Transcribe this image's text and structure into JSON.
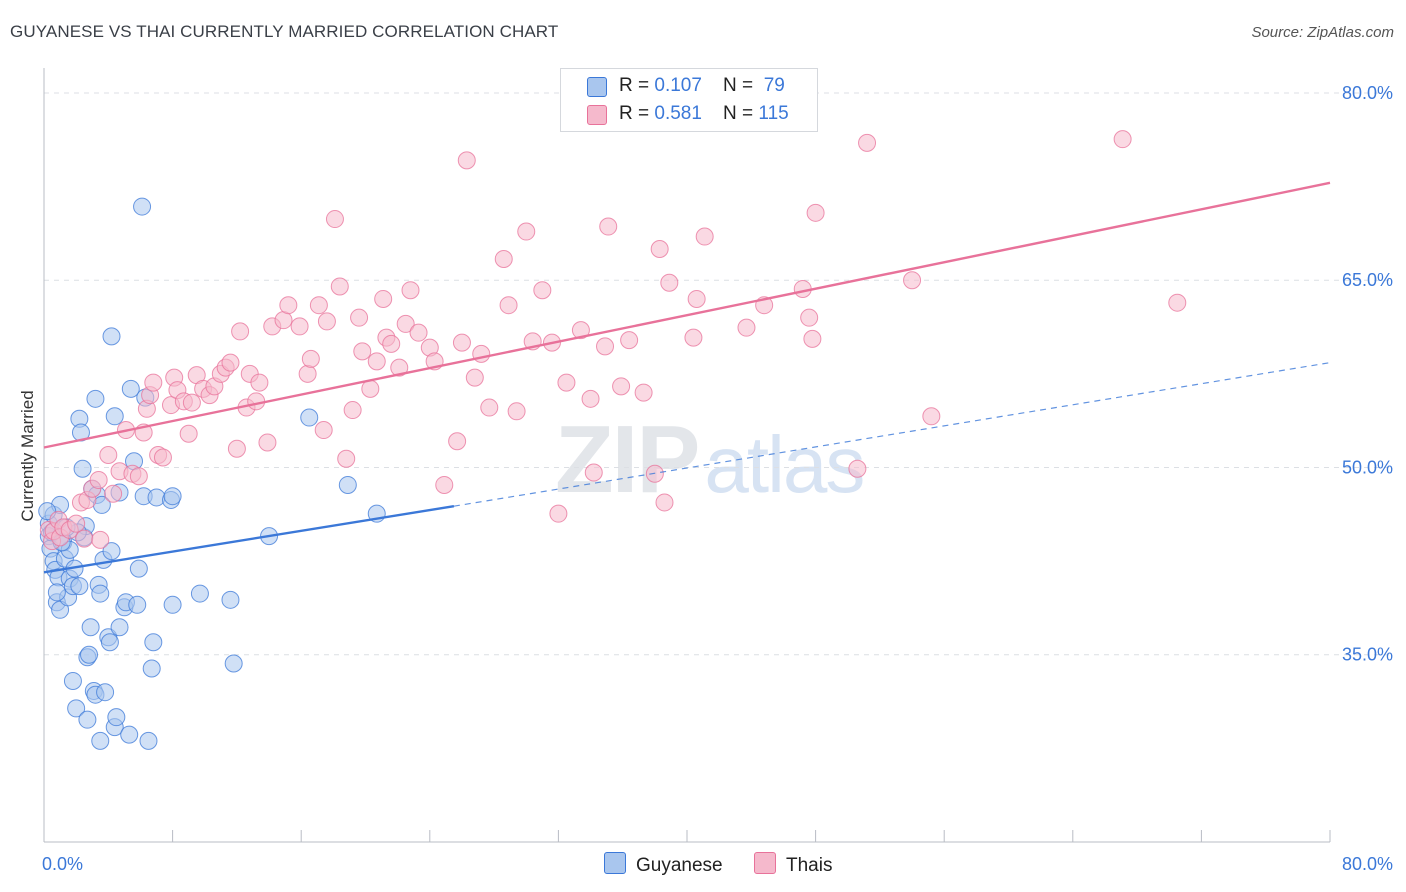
{
  "title": "GUYANESE VS THAI CURRENTLY MARRIED CORRELATION CHART",
  "source": "Source: ZipAtlas.com",
  "watermark": {
    "zip": "ZIP",
    "atlas": "atlas"
  },
  "colors": {
    "blue": "#3b78d8",
    "blue_fill": "#a9c6ee",
    "pink": "#e8729a",
    "pink_fill": "#f5b9cc",
    "grid": "#dcdfe4",
    "axis_text": "#3b78d8"
  },
  "legend": [
    {
      "r_label": "R = ",
      "r_value": "0.107",
      "n_label": "N = ",
      "n_value": "79"
    },
    {
      "r_label": "R = ",
      "r_value": "0.581",
      "n_label": "N = ",
      "n_value": "115"
    }
  ],
  "bottom_legend": [
    "Guyanese",
    "Thais"
  ],
  "chart_data": {
    "type": "scatter",
    "title": "GUYANESE VS THAI CURRENTLY MARRIED CORRELATION CHART",
    "xlabel": "",
    "ylabel": "Currently Married",
    "xlim": [
      0,
      80
    ],
    "ylim": [
      20,
      82
    ],
    "x_tick_labels": [
      "0.0%",
      "80.0%"
    ],
    "y_ticks": [
      35,
      50,
      65,
      80
    ],
    "y_tick_labels": [
      "35.0%",
      "50.0%",
      "65.0%",
      "80.0%"
    ],
    "series": [
      {
        "name": "Guyanese",
        "color": "#3b78d8",
        "trend": {
          "x": [
            0,
            25.5
          ],
          "y": [
            41.6,
            46.9
          ],
          "dashed_to": [
            80,
            58.4
          ]
        },
        "points": [
          [
            0.3,
            45.5
          ],
          [
            0.3,
            44.5
          ],
          [
            0.4,
            43.5
          ],
          [
            0.5,
            44.8
          ],
          [
            0.6,
            46.2
          ],
          [
            0.6,
            42.5
          ],
          [
            0.7,
            41.8
          ],
          [
            0.8,
            39.2
          ],
          [
            0.9,
            41.2
          ],
          [
            1.0,
            47.0
          ],
          [
            1.0,
            38.6
          ],
          [
            1.2,
            44.0
          ],
          [
            1.3,
            42.7
          ],
          [
            1.5,
            39.6
          ],
          [
            1.6,
            41.1
          ],
          [
            1.6,
            43.4
          ],
          [
            1.8,
            40.5
          ],
          [
            1.8,
            32.9
          ],
          [
            1.9,
            41.9
          ],
          [
            2.0,
            30.7
          ],
          [
            2.2,
            40.5
          ],
          [
            2.2,
            53.9
          ],
          [
            2.3,
            52.8
          ],
          [
            2.4,
            49.9
          ],
          [
            2.5,
            44.4
          ],
          [
            2.6,
            45.3
          ],
          [
            2.7,
            34.8
          ],
          [
            2.7,
            29.8
          ],
          [
            2.8,
            35.0
          ],
          [
            2.9,
            37.2
          ],
          [
            3.0,
            48.3
          ],
          [
            3.1,
            32.1
          ],
          [
            3.2,
            31.8
          ],
          [
            3.2,
            55.5
          ],
          [
            3.3,
            47.8
          ],
          [
            3.4,
            40.6
          ],
          [
            3.5,
            39.9
          ],
          [
            3.5,
            28.1
          ],
          [
            3.6,
            47.0
          ],
          [
            3.7,
            42.6
          ],
          [
            3.8,
            32.0
          ],
          [
            4.0,
            36.4
          ],
          [
            4.1,
            36.0
          ],
          [
            4.2,
            43.3
          ],
          [
            4.2,
            60.5
          ],
          [
            4.4,
            29.2
          ],
          [
            4.4,
            54.1
          ],
          [
            4.5,
            30.0
          ],
          [
            4.7,
            37.2
          ],
          [
            4.7,
            48.0
          ],
          [
            5.0,
            38.8
          ],
          [
            5.1,
            39.2
          ],
          [
            5.3,
            28.6
          ],
          [
            5.4,
            56.3
          ],
          [
            5.6,
            50.5
          ],
          [
            5.8,
            39.0
          ],
          [
            5.9,
            41.9
          ],
          [
            6.1,
            70.9
          ],
          [
            6.2,
            47.7
          ],
          [
            6.3,
            55.6
          ],
          [
            6.5,
            28.1
          ],
          [
            6.7,
            33.9
          ],
          [
            6.8,
            36.0
          ],
          [
            7.0,
            47.6
          ],
          [
            7.9,
            47.4
          ],
          [
            8.0,
            39.0
          ],
          [
            8.0,
            47.7
          ],
          [
            9.7,
            39.9
          ],
          [
            11.6,
            39.4
          ],
          [
            11.8,
            34.3
          ],
          [
            14.0,
            44.5
          ],
          [
            16.5,
            54.0
          ],
          [
            18.9,
            48.6
          ],
          [
            20.7,
            46.3
          ],
          [
            1.1,
            44.0
          ],
          [
            0.2,
            46.5
          ],
          [
            2.1,
            44.8
          ],
          [
            1.4,
            45.2
          ],
          [
            0.8,
            40.0
          ]
        ]
      },
      {
        "name": "Thais",
        "color": "#e8729a",
        "trend": {
          "x": [
            0,
            80
          ],
          "y": [
            51.6,
            72.8
          ]
        },
        "points": [
          [
            0.3,
            45.0
          ],
          [
            0.5,
            44.1
          ],
          [
            0.6,
            44.9
          ],
          [
            0.9,
            45.8
          ],
          [
            1.0,
            44.4
          ],
          [
            1.2,
            45.2
          ],
          [
            1.6,
            45.0
          ],
          [
            2.0,
            45.5
          ],
          [
            2.3,
            47.2
          ],
          [
            2.5,
            44.3
          ],
          [
            2.7,
            47.4
          ],
          [
            3.0,
            48.3
          ],
          [
            3.4,
            49.0
          ],
          [
            3.5,
            44.2
          ],
          [
            4.0,
            51.0
          ],
          [
            4.3,
            47.9
          ],
          [
            4.7,
            49.7
          ],
          [
            5.1,
            53.0
          ],
          [
            5.5,
            49.5
          ],
          [
            5.9,
            49.3
          ],
          [
            6.2,
            52.8
          ],
          [
            6.4,
            54.7
          ],
          [
            6.6,
            55.8
          ],
          [
            6.8,
            56.8
          ],
          [
            7.1,
            51.0
          ],
          [
            7.4,
            50.8
          ],
          [
            7.9,
            55.0
          ],
          [
            8.1,
            57.2
          ],
          [
            8.3,
            56.2
          ],
          [
            8.7,
            55.3
          ],
          [
            9.0,
            52.7
          ],
          [
            9.2,
            55.2
          ],
          [
            9.5,
            57.4
          ],
          [
            9.9,
            56.3
          ],
          [
            10.3,
            55.8
          ],
          [
            10.6,
            56.5
          ],
          [
            11.0,
            57.5
          ],
          [
            11.3,
            58.0
          ],
          [
            11.6,
            58.4
          ],
          [
            12.0,
            51.5
          ],
          [
            12.2,
            60.9
          ],
          [
            12.6,
            54.8
          ],
          [
            12.8,
            57.5
          ],
          [
            13.2,
            55.3
          ],
          [
            13.4,
            56.8
          ],
          [
            13.9,
            52.0
          ],
          [
            14.2,
            61.3
          ],
          [
            14.9,
            61.8
          ],
          [
            15.2,
            63.0
          ],
          [
            15.9,
            61.3
          ],
          [
            16.4,
            57.5
          ],
          [
            16.6,
            58.7
          ],
          [
            17.1,
            63.0
          ],
          [
            17.4,
            53.0
          ],
          [
            17.6,
            61.7
          ],
          [
            18.1,
            69.9
          ],
          [
            18.4,
            64.5
          ],
          [
            18.8,
            50.7
          ],
          [
            19.2,
            54.6
          ],
          [
            19.6,
            62.0
          ],
          [
            19.8,
            59.3
          ],
          [
            20.3,
            56.3
          ],
          [
            20.7,
            58.5
          ],
          [
            21.1,
            63.5
          ],
          [
            21.3,
            60.4
          ],
          [
            21.6,
            59.9
          ],
          [
            22.1,
            58.0
          ],
          [
            22.5,
            61.5
          ],
          [
            22.8,
            64.2
          ],
          [
            23.3,
            60.8
          ],
          [
            24.0,
            59.6
          ],
          [
            24.3,
            58.5
          ],
          [
            24.9,
            48.6
          ],
          [
            25.7,
            52.1
          ],
          [
            26.0,
            60.0
          ],
          [
            26.3,
            74.6
          ],
          [
            26.8,
            57.2
          ],
          [
            27.2,
            59.1
          ],
          [
            27.7,
            54.8
          ],
          [
            28.6,
            66.7
          ],
          [
            28.9,
            63.0
          ],
          [
            29.4,
            54.5
          ],
          [
            30.0,
            68.9
          ],
          [
            30.4,
            60.1
          ],
          [
            31.0,
            64.2
          ],
          [
            31.6,
            60.0
          ],
          [
            32.0,
            46.3
          ],
          [
            32.5,
            56.8
          ],
          [
            33.4,
            61.0
          ],
          [
            34.0,
            55.5
          ],
          [
            34.2,
            49.6
          ],
          [
            34.9,
            59.7
          ],
          [
            35.1,
            69.3
          ],
          [
            35.9,
            56.5
          ],
          [
            36.4,
            60.2
          ],
          [
            37.3,
            56.0
          ],
          [
            38.0,
            49.5
          ],
          [
            38.3,
            67.5
          ],
          [
            38.6,
            47.2
          ],
          [
            38.9,
            64.8
          ],
          [
            40.4,
            60.4
          ],
          [
            40.6,
            63.5
          ],
          [
            41.1,
            68.5
          ],
          [
            43.7,
            61.2
          ],
          [
            44.8,
            63.0
          ],
          [
            47.2,
            64.3
          ],
          [
            47.6,
            62.0
          ],
          [
            47.8,
            60.3
          ],
          [
            48.0,
            70.4
          ],
          [
            50.6,
            49.9
          ],
          [
            51.2,
            76.0
          ],
          [
            54.0,
            65.0
          ],
          [
            55.2,
            54.1
          ],
          [
            67.1,
            76.3
          ],
          [
            70.5,
            63.2
          ]
        ]
      }
    ]
  }
}
